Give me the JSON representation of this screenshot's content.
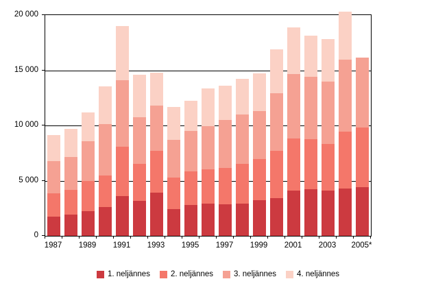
{
  "chart_data": {
    "type": "bar",
    "stacked": true,
    "categories": [
      "1987",
      "1988",
      "1989",
      "1990",
      "1991",
      "1992",
      "1993",
      "1994",
      "1995",
      "1996",
      "1997",
      "1998",
      "1999",
      "2000",
      "2001",
      "2002",
      "2003",
      "2004",
      "2005*"
    ],
    "series": [
      {
        "name": "1. neljännes",
        "color": "#cc3a40",
        "values": [
          1750,
          1950,
          2250,
          2600,
          3600,
          3200,
          3900,
          2450,
          2800,
          2900,
          2850,
          2950,
          3250,
          3400,
          4100,
          4200,
          4100,
          4300,
          4400
        ]
      },
      {
        "name": "2. neljännes",
        "color": "#f4776a",
        "values": [
          2130,
          2200,
          2700,
          2850,
          4500,
          3350,
          3800,
          2850,
          3050,
          3150,
          3300,
          3600,
          3700,
          4300,
          4750,
          4550,
          4200,
          5150,
          5450
        ]
      },
      {
        "name": "3. neljännes",
        "color": "#f5a193",
        "values": [
          2900,
          3000,
          3600,
          4650,
          6000,
          4200,
          4100,
          3400,
          3650,
          3900,
          4350,
          4450,
          4350,
          5200,
          5800,
          5650,
          5700,
          6500,
          6300
        ]
      },
      {
        "name": "4. neljännes",
        "color": "#fbd1c5",
        "values": [
          2370,
          2550,
          2650,
          3450,
          4900,
          3850,
          3000,
          3000,
          2750,
          3400,
          3100,
          3200,
          3400,
          4000,
          4250,
          3750,
          3850,
          4400,
          0
        ]
      }
    ],
    "title": "",
    "xlabel": "",
    "ylabel": "",
    "ylim": [
      0,
      20000
    ],
    "y_tick_labels": [
      "0",
      "5 000",
      "10 000",
      "15 000",
      "20 000"
    ],
    "x_tick_labels": [
      "1987",
      "1989",
      "1991",
      "1993",
      "1995",
      "1997",
      "1999",
      "2001",
      "2003",
      "2005*"
    ],
    "grid": true,
    "legend_position": "bottom"
  },
  "legend": {
    "items": [
      "1. neljännes",
      "2. neljännes",
      "3. neljännes",
      "4. neljännes"
    ]
  }
}
